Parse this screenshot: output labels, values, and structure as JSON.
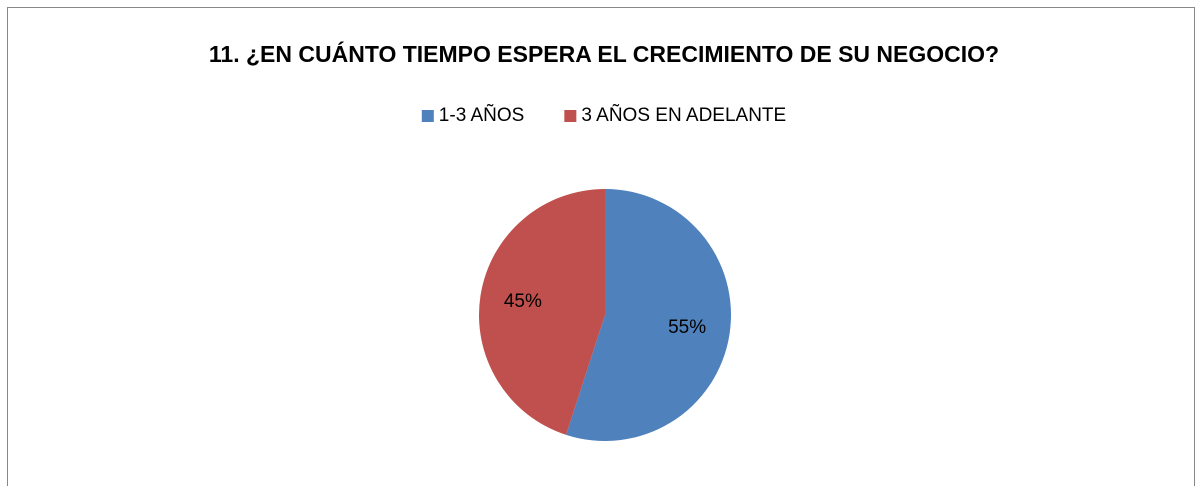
{
  "chart_data": {
    "type": "pie",
    "title": "11. ¿EN CUÁNTO TIEMPO ESPERA EL CRECIMIENTO DE SU NEGOCIO?",
    "categories": [
      "1-3 AÑOS",
      "3 AÑOS EN ADELANTE"
    ],
    "values": [
      55,
      45
    ],
    "value_labels": [
      "55%",
      "45%"
    ],
    "colors": [
      "#4f81bd",
      "#c0504d"
    ],
    "legend": "top"
  }
}
